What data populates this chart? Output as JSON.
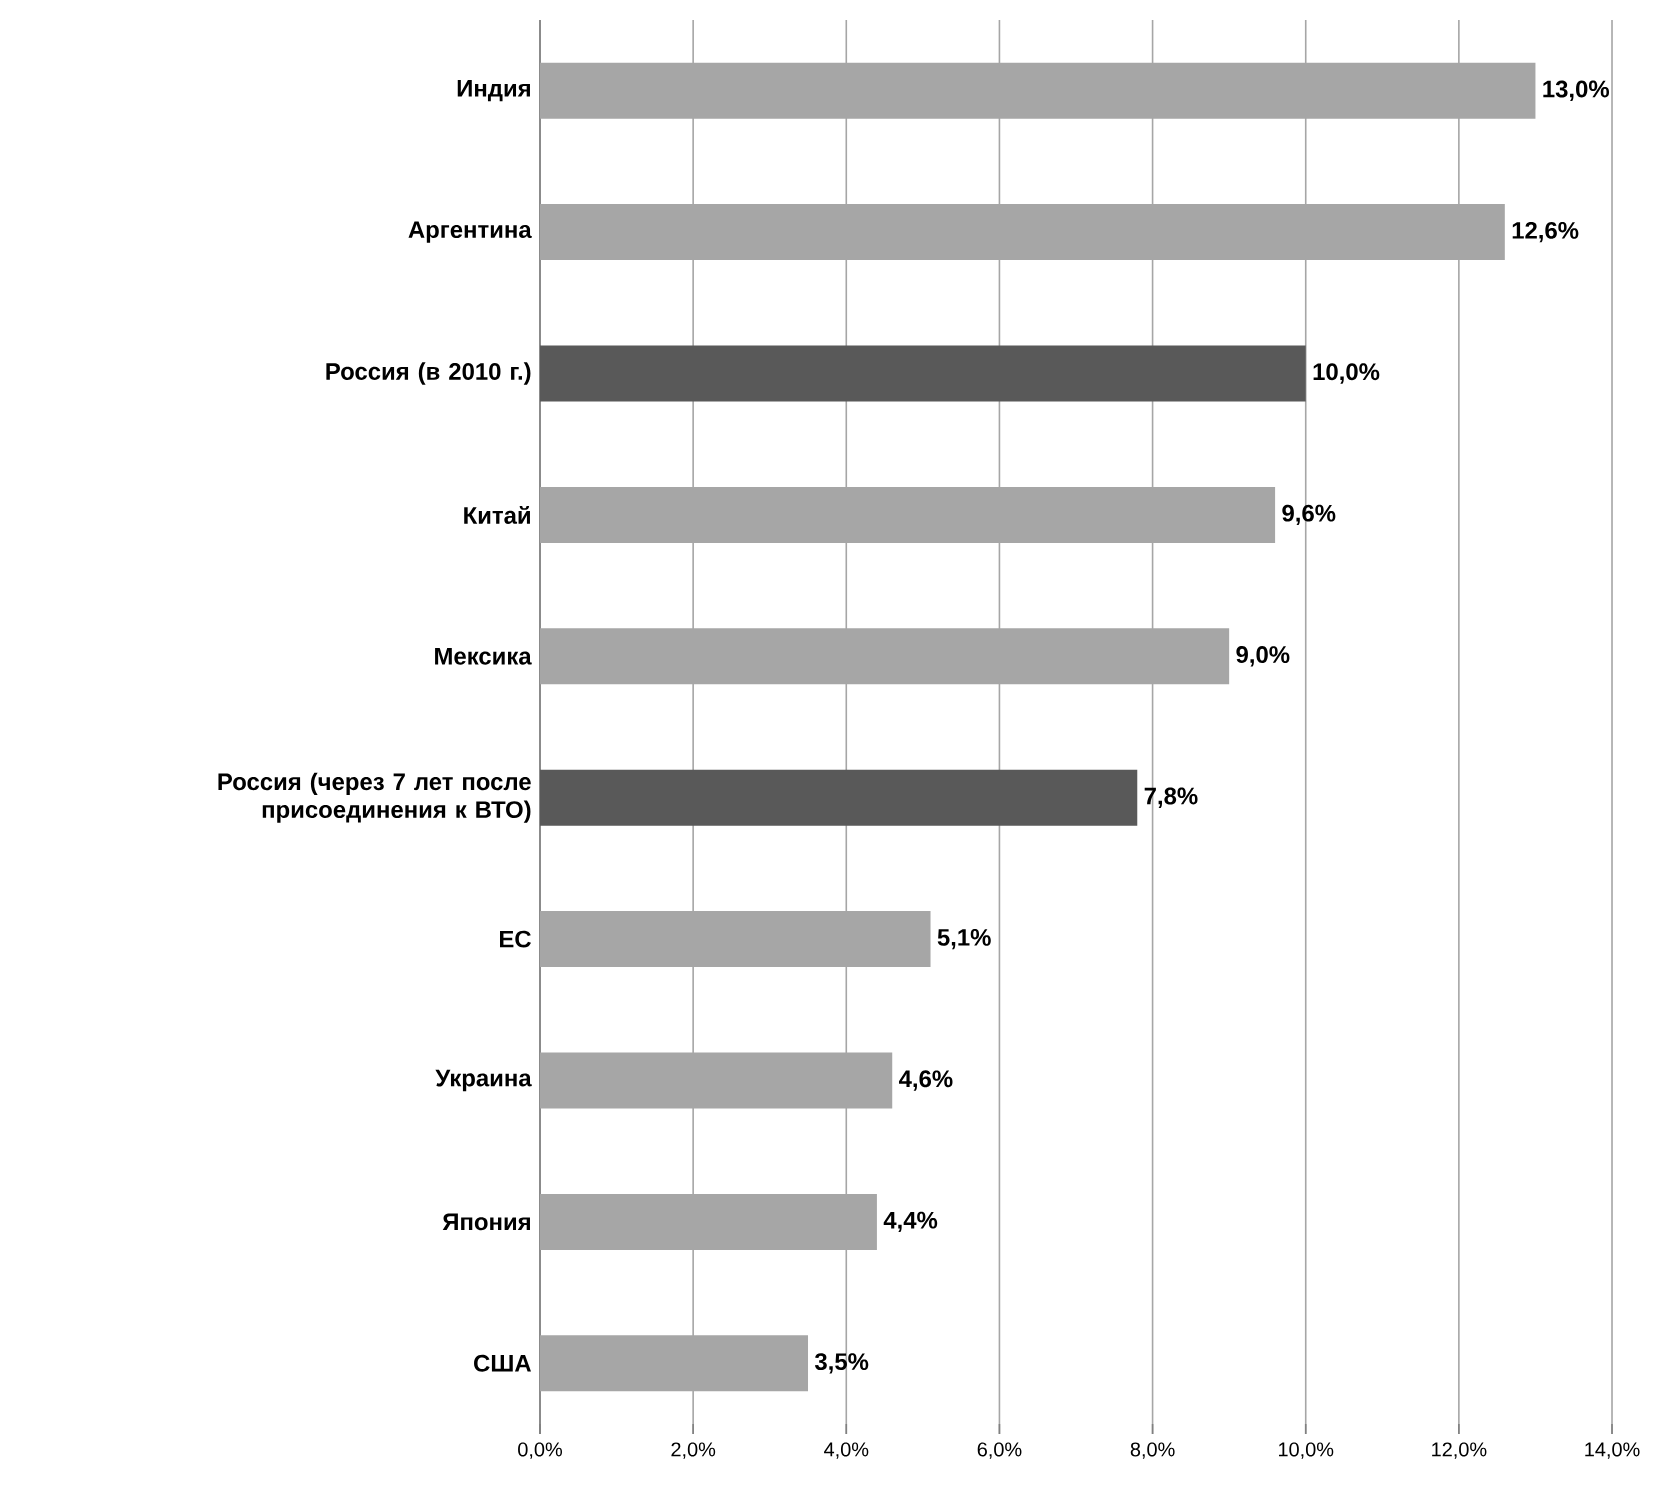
{
  "chart_data": {
    "type": "bar",
    "orientation": "horizontal",
    "categories": [
      "Индия",
      "Аргентина",
      "Россия (в 2010 г.)",
      "Китай",
      "Мексика",
      "Россия (через 7 лет после присоединения к ВТО)",
      "ЕС",
      "Украина",
      "Япония",
      "США"
    ],
    "values": [
      13.0,
      12.6,
      10.0,
      9.6,
      9.0,
      7.8,
      5.1,
      4.6,
      4.4,
      3.5
    ],
    "value_labels": [
      "13,0%",
      "12,6%",
      "10,0%",
      "9,6%",
      "9,0%",
      "7,8%",
      "5,1%",
      "4,6%",
      "4,4%",
      "3,5%"
    ],
    "colors": [
      "#a6a6a6",
      "#a6a6a6",
      "#595959",
      "#a6a6a6",
      "#a6a6a6",
      "#595959",
      "#a6a6a6",
      "#a6a6a6",
      "#a6a6a6",
      "#a6a6a6"
    ],
    "xlim": [
      0,
      14
    ],
    "xticks": [
      {
        "value": 0,
        "label": "0,0%"
      },
      {
        "value": 2,
        "label": "2,0%"
      },
      {
        "value": 4,
        "label": "4,0%"
      },
      {
        "value": 6,
        "label": "6,0%"
      },
      {
        "value": 8,
        "label": "8,0%"
      },
      {
        "value": 10,
        "label": "10,0%"
      },
      {
        "value": 12,
        "label": "12,0%"
      },
      {
        "value": 14,
        "label": "14,0%"
      }
    ],
    "grid": "x"
  }
}
